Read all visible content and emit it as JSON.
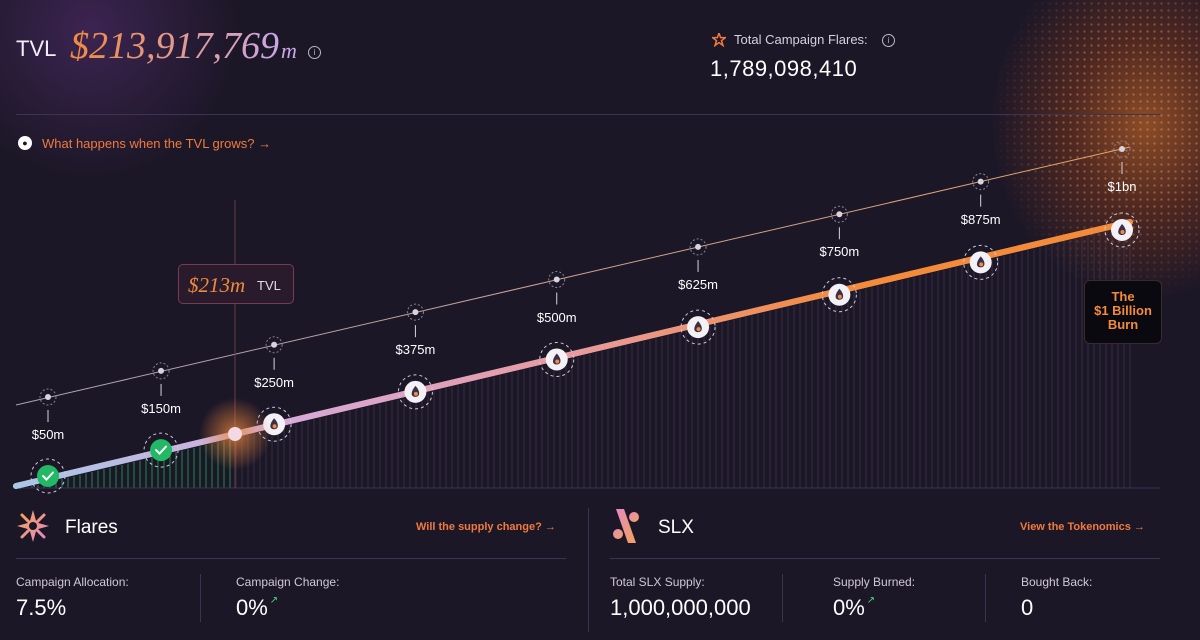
{
  "header": {
    "tvl_label": "TVL",
    "tvl_value": "$213,917,769",
    "tvl_unit": "m",
    "info_glyph": "i",
    "flares_total_label": "Total Campaign Flares:",
    "flares_total_value": "1,789,098,410"
  },
  "growth_link": "What happens when the TVL grows? →",
  "timeline": {
    "current": {
      "big": "$213m",
      "small": "TVL",
      "value_m": 213
    },
    "milestones": [
      {
        "label": "$50m",
        "value_m": 50,
        "reached": true
      },
      {
        "label": "$150m",
        "value_m": 150,
        "reached": true
      },
      {
        "label": "$250m",
        "value_m": 250,
        "reached": false
      },
      {
        "label": "$375m",
        "value_m": 375,
        "reached": false
      },
      {
        "label": "$500m",
        "value_m": 500,
        "reached": false
      },
      {
        "label": "$625m",
        "value_m": 625,
        "reached": false
      },
      {
        "label": "$750m",
        "value_m": 750,
        "reached": false
      },
      {
        "label": "$875m",
        "value_m": 875,
        "reached": false
      },
      {
        "label": "$1bn",
        "value_m": 1000,
        "reached": false
      }
    ],
    "burn_box": {
      "line1": "The",
      "line2": "$1 Billion",
      "line3": "Burn"
    }
  },
  "flares": {
    "title": "Flares",
    "link": "Will the supply change? →",
    "stats": [
      {
        "label": "Campaign Allocation:",
        "value": "7.5%"
      },
      {
        "label": "Campaign Change:",
        "value": "0%",
        "trend": "↗"
      }
    ]
  },
  "slx": {
    "title": "SLX",
    "link": "View the Tokenomics →",
    "stats": [
      {
        "label": "Total SLX Supply:",
        "value": "1,000,000,000"
      },
      {
        "label": "Supply Burned:",
        "value": "0%",
        "trend": "↗"
      },
      {
        "label": "Bought Back:",
        "value": "0"
      }
    ]
  },
  "colors": {
    "accent": "#f07a3c",
    "reached": "#22b866",
    "background": "#1c1727"
  },
  "icons": {
    "grow": "flame-icon",
    "milestone": "flame-icon",
    "reached": "check-icon",
    "flares_section": "sparkle-star-icon",
    "slx_section": "slx-logo-icon",
    "flares_total": "star-icon"
  }
}
